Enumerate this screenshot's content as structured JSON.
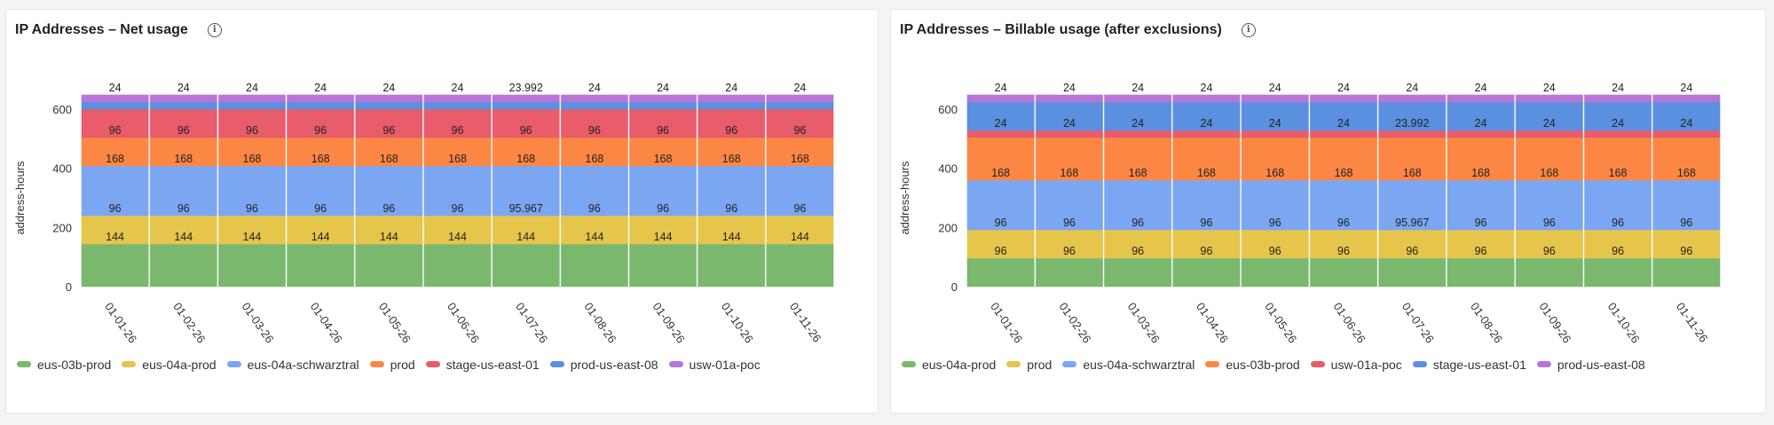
{
  "panels": [
    {
      "title": "IP Addresses – Net usage",
      "info_icon": "info-circle-icon"
    },
    {
      "title": "IP Addresses – Billable usage (after exclusions)",
      "info_icon": "info-circle-icon"
    }
  ],
  "chart_data": [
    {
      "type": "bar",
      "stacked": true,
      "title": "IP Addresses – Net usage",
      "ylabel": "address-hours",
      "yticks": [
        0,
        200,
        400,
        600
      ],
      "ylim": [
        0,
        660
      ],
      "legend_position": "bottom",
      "categories": [
        "01-01-26",
        "01-02-26",
        "01-03-26",
        "01-04-26",
        "01-05-26",
        "01-06-26",
        "01-07-26",
        "01-08-26",
        "01-09-26",
        "01-10-26",
        "01-11-26"
      ],
      "series": [
        {
          "name": "eus-03b-prod",
          "color": "#7ab86d",
          "values": [
            144,
            144,
            144,
            144,
            144,
            144,
            144,
            144,
            144,
            144,
            144
          ]
        },
        {
          "name": "eus-04a-prod",
          "color": "#e6c54b",
          "values": [
            96,
            96,
            96,
            96,
            96,
            96,
            95.967,
            96,
            96,
            96,
            96
          ]
        },
        {
          "name": "eus-04a-schwarztral",
          "color": "#7ba7f2",
          "values": [
            168,
            168,
            168,
            168,
            168,
            168,
            168,
            168,
            168,
            168,
            168
          ]
        },
        {
          "name": "prod",
          "color": "#fc8744",
          "values": [
            96,
            96,
            96,
            96,
            96,
            96,
            96,
            96,
            96,
            96,
            96
          ]
        },
        {
          "name": "stage-us-east-01",
          "color": "#e85c6b",
          "values": [
            96,
            96,
            96,
            96,
            96,
            96,
            96,
            96,
            96,
            96,
            96
          ]
        },
        {
          "name": "prod-us-east-08",
          "color": "#5b8fdf",
          "values": [
            24,
            24,
            24,
            24,
            24,
            24,
            24,
            24,
            24,
            24,
            24
          ]
        },
        {
          "name": "usw-01a-poc",
          "color": "#b676d8",
          "values": [
            24,
            24,
            24,
            24,
            24,
            24,
            23.992,
            24,
            24,
            24,
            24
          ]
        }
      ]
    },
    {
      "type": "bar",
      "stacked": true,
      "title": "IP Addresses – Billable usage (after exclusions)",
      "ylabel": "address-hours",
      "yticks": [
        0,
        200,
        400,
        600
      ],
      "ylim": [
        0,
        660
      ],
      "legend_position": "bottom",
      "categories": [
        "01-01-26",
        "01-02-26",
        "01-03-26",
        "01-04-26",
        "01-05-26",
        "01-06-26",
        "01-07-26",
        "01-08-26",
        "01-09-26",
        "01-10-26",
        "01-11-26"
      ],
      "series": [
        {
          "name": "eus-04a-prod",
          "color": "#7ab86d",
          "values": [
            96,
            96,
            96,
            96,
            96,
            96,
            96,
            96,
            96,
            96,
            96
          ]
        },
        {
          "name": "prod",
          "color": "#e6c54b",
          "values": [
            96,
            96,
            96,
            96,
            96,
            96,
            95.967,
            96,
            96,
            96,
            96
          ]
        },
        {
          "name": "eus-04a-schwarztral",
          "color": "#7ba7f2",
          "values": [
            168,
            168,
            168,
            168,
            168,
            168,
            168,
            168,
            168,
            168,
            168
          ]
        },
        {
          "name": "eus-03b-prod",
          "color": "#fc8744",
          "values": [
            144,
            144,
            144,
            144,
            144,
            144,
            144,
            144,
            144,
            144,
            144
          ]
        },
        {
          "name": "usw-01a-poc",
          "color": "#e85c6b",
          "values": [
            24,
            24,
            24,
            24,
            24,
            24,
            23.992,
            24,
            24,
            24,
            24
          ]
        },
        {
          "name": "stage-us-east-01",
          "color": "#5b8fdf",
          "values": [
            96,
            96,
            96,
            96,
            96,
            96,
            96,
            96,
            96,
            96,
            96
          ]
        },
        {
          "name": "prod-us-east-08",
          "color": "#b676d8",
          "values": [
            24,
            24,
            24,
            24,
            24,
            24,
            24,
            24,
            24,
            24,
            24
          ]
        }
      ]
    }
  ]
}
